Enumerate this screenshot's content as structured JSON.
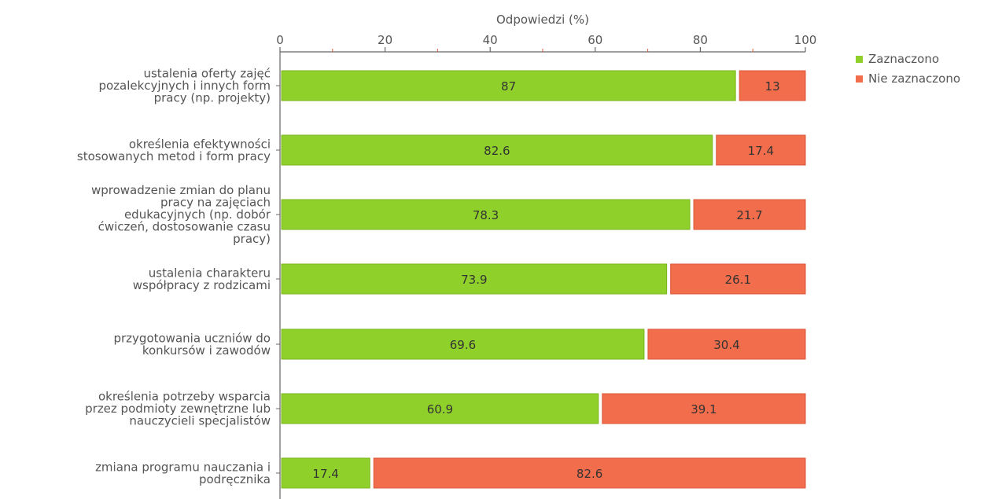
{
  "chart_data": {
    "type": "bar",
    "orientation": "horizontal",
    "stacked": true,
    "xlabel": "Odpowiedzi (%)",
    "xlim": [
      0,
      100
    ],
    "x_ticks": [
      0,
      20,
      40,
      60,
      80,
      100
    ],
    "x_tick_labels": [
      "0",
      "20",
      "40",
      "60",
      "80",
      "100"
    ],
    "categories": [
      [
        "ustalenia oferty zajęć",
        "pozalekcyjnych i innych form",
        "pracy (np. projekty)"
      ],
      [
        "określenia efektywności",
        "stosowanych metod i form pracy"
      ],
      [
        "wprowadzenie zmian do planu",
        "pracy na zajęciach",
        "edukacyjnych (np. dobór",
        "ćwiczeń, dostosowanie czasu",
        "pracy)"
      ],
      [
        "ustalenia charakteru",
        "współpracy z rodzicami"
      ],
      [
        "przygotowania uczniów do",
        "konkursów i zawodów"
      ],
      [
        "określenia potrzeby wsparcia",
        "przez podmioty zewnętrzne lub",
        "nauczycieli specjalistów"
      ],
      [
        "zmiana programu nauczania i",
        "podręcznika"
      ]
    ],
    "series": [
      {
        "name": "Zaznaczono",
        "color": "#8fd12a",
        "values": [
          87,
          82.6,
          78.3,
          73.9,
          69.6,
          60.9,
          17.4
        ]
      },
      {
        "name": "Nie zaznaczono",
        "color": "#f26d4b",
        "values": [
          13,
          17.4,
          21.7,
          26.1,
          30.4,
          39.1,
          82.6
        ]
      }
    ],
    "value_labels": [
      [
        "87",
        "82.6",
        "78.3",
        "73.9",
        "69.6",
        "60.9",
        "17.4"
      ],
      [
        "13",
        "17.4",
        "21.7",
        "26.1",
        "30.4",
        "39.1",
        "82.6"
      ]
    ],
    "legend_position": "top-right",
    "grid": false
  }
}
